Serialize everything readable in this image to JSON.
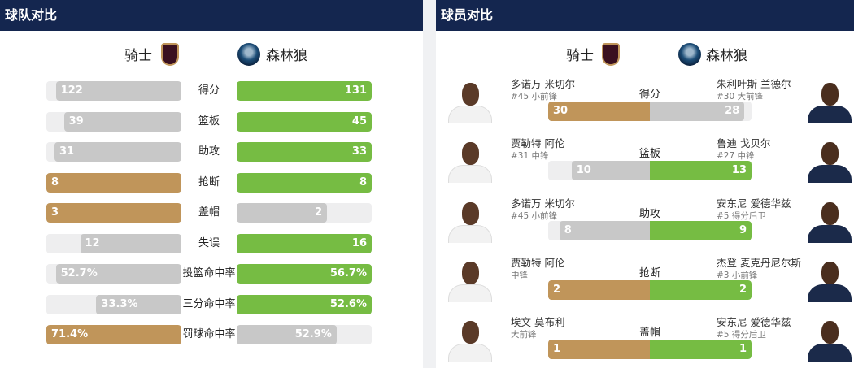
{
  "team_compare": {
    "title": "球队对比",
    "home": "骑士",
    "away": "森林狼",
    "colors": {
      "gold": "#c0955a",
      "green": "#76bc43",
      "gray": "#c8c8c8"
    },
    "rows": [
      {
        "label": "得分",
        "home": "122",
        "away": "131",
        "home_frac": 0.93,
        "away_frac": 1,
        "home_color": "gray",
        "away_color": "green"
      },
      {
        "label": "篮板",
        "home": "39",
        "away": "45",
        "home_frac": 0.87,
        "away_frac": 1,
        "home_color": "gray",
        "away_color": "green"
      },
      {
        "label": "助攻",
        "home": "31",
        "away": "33",
        "home_frac": 0.94,
        "away_frac": 1,
        "home_color": "gray",
        "away_color": "green"
      },
      {
        "label": "抢断",
        "home": "8",
        "away": "8",
        "home_frac": 1,
        "away_frac": 1,
        "home_color": "gold",
        "away_color": "green"
      },
      {
        "label": "盖帽",
        "home": "3",
        "away": "2",
        "home_frac": 1,
        "away_frac": 0.67,
        "home_color": "gold",
        "away_color": "gray"
      },
      {
        "label": "失误",
        "home": "12",
        "away": "16",
        "home_frac": 0.75,
        "away_frac": 1,
        "home_color": "gray",
        "away_color": "green"
      },
      {
        "label": "投篮命中率",
        "home": "52.7%",
        "away": "56.7%",
        "home_frac": 0.93,
        "away_frac": 1,
        "home_color": "gray",
        "away_color": "green"
      },
      {
        "label": "三分命中率",
        "home": "33.3%",
        "away": "52.6%",
        "home_frac": 0.63,
        "away_frac": 1,
        "home_color": "gray",
        "away_color": "green"
      },
      {
        "label": "罚球命中率",
        "home": "71.4%",
        "away": "52.9%",
        "home_frac": 1,
        "away_frac": 0.74,
        "home_color": "gold",
        "away_color": "gray"
      }
    ]
  },
  "player_compare": {
    "title": "球员对比",
    "home": "骑士",
    "away": "森林狼",
    "rows": [
      {
        "label": "得分",
        "home_name": "多诺万 米切尔",
        "home_pos": "#45 小前锋",
        "away_name": "朱利叶斯 兰德尔",
        "away_pos": "#30 大前锋",
        "home": "30",
        "away": "28",
        "home_frac": 1,
        "away_frac": 0.93,
        "home_color": "gold",
        "away_color": "gray"
      },
      {
        "label": "篮板",
        "home_name": "贾勒特 阿伦",
        "home_pos": "#31 中锋",
        "away_name": "鲁迪 戈贝尔",
        "away_pos": "#27 中锋",
        "home": "10",
        "away": "13",
        "home_frac": 0.77,
        "away_frac": 1,
        "home_color": "gray",
        "away_color": "green"
      },
      {
        "label": "助攻",
        "home_name": "多诺万 米切尔",
        "home_pos": "#45 小前锋",
        "away_name": "安东尼 爱德华兹",
        "away_pos": "#5 得分后卫",
        "home": "8",
        "away": "9",
        "home_frac": 0.89,
        "away_frac": 1,
        "home_color": "gray",
        "away_color": "green"
      },
      {
        "label": "抢断",
        "home_name": "贾勒特 阿伦",
        "home_pos": "中锋",
        "away_name": "杰登 麦克丹尼尔斯",
        "away_pos": "#3 小前锋",
        "home": "2",
        "away": "2",
        "home_frac": 1,
        "away_frac": 1,
        "home_color": "gold",
        "away_color": "green"
      },
      {
        "label": "盖帽",
        "home_name": "埃文 莫布利",
        "home_pos": "大前锋",
        "away_name": "安东尼 爱德华兹",
        "away_pos": "#5 得分后卫",
        "home": "1",
        "away": "1",
        "home_frac": 1,
        "away_frac": 1,
        "home_color": "gold",
        "away_color": "green"
      }
    ]
  }
}
